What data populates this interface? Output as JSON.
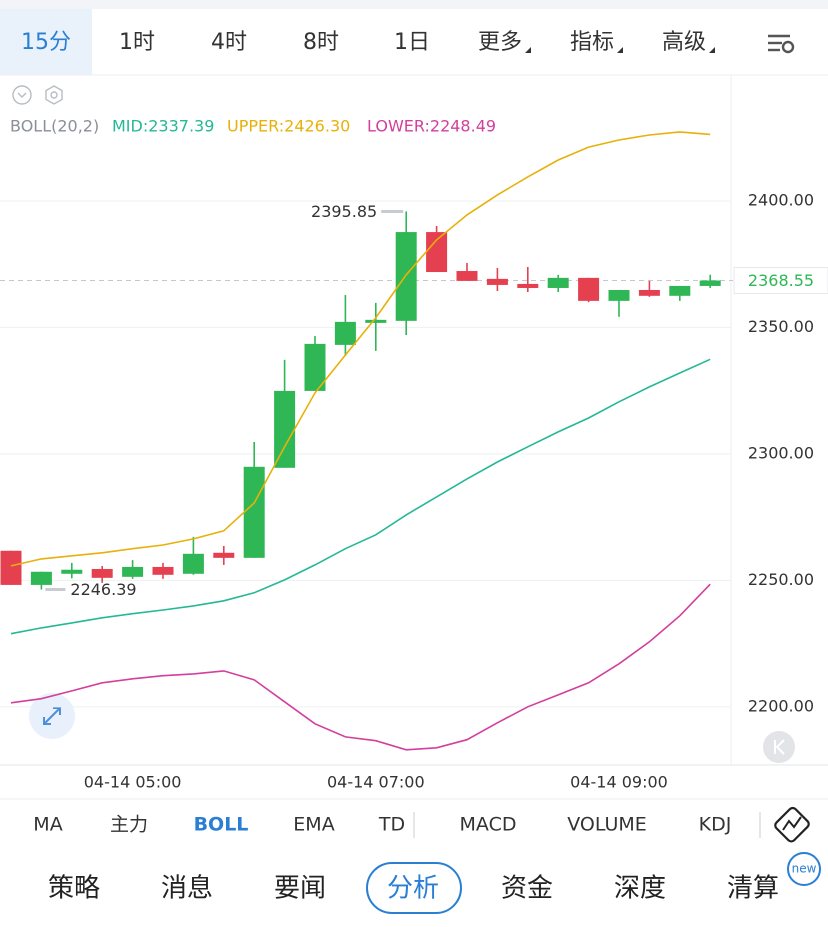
{
  "top_tabs": [
    "15分",
    "1时",
    "4时",
    "8时",
    "1日",
    "更多",
    "指标",
    "高级"
  ],
  "chart_data": {
    "type": "candlestick",
    "indicator": "BOLL(20,2)",
    "categories": [
      null,
      null,
      null,
      null,
      "04-14 05:00",
      null,
      null,
      null,
      null,
      null,
      null,
      null,
      "04-14 07:00",
      null,
      null,
      null,
      null,
      null,
      null,
      null,
      "04-14 09:00",
      null,
      null,
      null
    ],
    "open": [
      2261.7,
      2248.2,
      2252.6,
      2254.5,
      2251.4,
      2255.3,
      2252.6,
      2260.9,
      2258.9,
      2294.5,
      2324.9,
      2343.1,
      2351.8,
      2352.6,
      2387.7,
      2372.3,
      2369.2,
      2367.2,
      2365.6,
      2369.6,
      2360.5,
      2364.8,
      2362.5,
      2366.4
    ],
    "high": [
      2261.7,
      2253.4,
      2256.9,
      2255.7,
      2258.0,
      2256.9,
      2267.2,
      2263.6,
      2304.7,
      2337.2,
      2346.6,
      2362.8,
      2359.7,
      2395.85,
      2390.1,
      2375.5,
      2373.5,
      2373.9,
      2370.8,
      2369.6,
      2364.8,
      2368.4,
      2366.4,
      2370.8
    ],
    "low": [
      2248.2,
      2246.39,
      2250.8,
      2249.0,
      2250.6,
      2250.6,
      2252.2,
      2256.1,
      2258.9,
      2294.5,
      2324.9,
      2338.7,
      2340.7,
      2347.0,
      2371.9,
      2368.4,
      2364.4,
      2364.0,
      2364.0,
      2360.0,
      2354.2,
      2362.1,
      2360.5,
      2365.6
    ],
    "close": [
      2248.2,
      2253.4,
      2254.2,
      2251.0,
      2255.3,
      2252.2,
      2260.5,
      2258.9,
      2294.9,
      2324.9,
      2343.5,
      2352.2,
      2353.0,
      2387.7,
      2371.9,
      2368.4,
      2366.8,
      2365.6,
      2369.6,
      2360.5,
      2364.8,
      2362.5,
      2366.4,
      2368.55
    ],
    "up_color": "#2fb755",
    "down_color": "#e5404f",
    "series": [
      {
        "name": "MID:2337.39",
        "color": "#25b896",
        "values": [
          2228.9,
          2231.2,
          2233.2,
          2235.2,
          2236.8,
          2238.3,
          2239.9,
          2241.9,
          2245.1,
          2250.2,
          2256.1,
          2262.5,
          2268.0,
          2275.9,
          2283.0,
          2290.1,
          2296.8,
          2302.8,
          2308.7,
          2314.2,
          2320.6,
          2326.5,
          2332.0,
          2337.39
        ]
      },
      {
        "name": "UPPER:2426.30",
        "color": "#e7b10a",
        "values": [
          2255.7,
          2258.5,
          2259.7,
          2260.9,
          2262.5,
          2264.0,
          2266.4,
          2269.6,
          2280.6,
          2302.8,
          2324.1,
          2339.1,
          2353.8,
          2370.8,
          2384.6,
          2394.5,
          2402.4,
          2409.5,
          2416.2,
          2421.3,
          2424.1,
          2426.1,
          2427.3,
          2426.3
        ]
      },
      {
        "name": "LOWER:2248.49",
        "color": "#d23f9c",
        "values": [
          2201.6,
          2203.2,
          2206.3,
          2209.5,
          2211.1,
          2212.3,
          2213.0,
          2214.2,
          2210.7,
          2202.0,
          2193.3,
          2188.1,
          2186.6,
          2183.0,
          2183.8,
          2187.0,
          2193.7,
          2200.0,
          2204.7,
          2209.5,
          2217.0,
          2225.7,
          2236.0,
          2248.49
        ]
      }
    ],
    "ylim": [
      2177,
      2450
    ],
    "yticks": [
      {
        "value": 2200,
        "label": "2200.00"
      },
      {
        "value": 2250,
        "label": "2250.00"
      },
      {
        "value": 2300,
        "label": "2300.00"
      },
      {
        "value": 2350,
        "label": "2350.00"
      },
      {
        "value": 2400,
        "label": "2400.00"
      }
    ],
    "grid": true,
    "max_label": 2395.85,
    "min_label": 2246.39,
    "last_price": 2368.55
  },
  "indicator_tabs": [
    "MA",
    "主力",
    "BOLL",
    "EMA",
    "TD",
    "MACD",
    "VOLUME",
    "KDJ"
  ],
  "bottom_tabs": [
    "策略",
    "消息",
    "要闻",
    "分析",
    "资金",
    "深度",
    "清算"
  ],
  "badge": "new"
}
